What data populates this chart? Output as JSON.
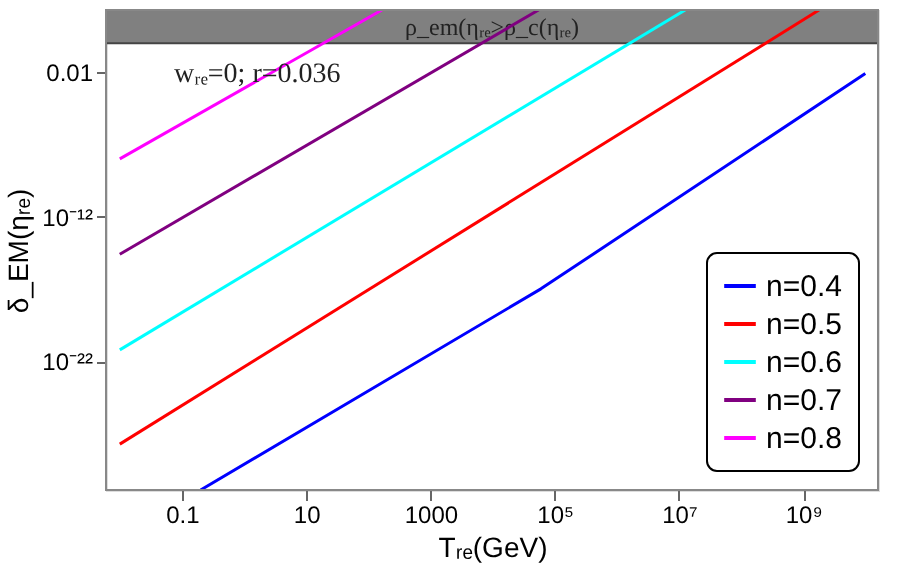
{
  "chart_data": {
    "type": "line",
    "xlabel": "Tᵣₑ(GeV)",
    "ylabel": "δ_EM(ηᵣₑ)",
    "log": "xy",
    "grid": false,
    "legend": "bottom right",
    "marker": "none",
    "line_style": "solid",
    "xlim": [
      0.006,
      16000000000.0
    ],
    "ylim": [
      1.2e-31,
      200
    ],
    "xticks": [
      0.1,
      10,
      1000,
      {
        "value": 100000,
        "label": "10⁵"
      },
      {
        "value": 10000000,
        "label": "10⁷"
      },
      {
        "value": 1000000000,
        "label": "10⁹"
      }
    ],
    "yticks": [
      {
        "value": 1e-22,
        "label": "10⁻²²"
      },
      {
        "value": 1e-12,
        "label": "10⁻¹²"
      },
      0.01
    ],
    "annotations": [
      "wᵣₑ=0; r=0.036"
    ],
    "bands": [
      {
        "axis": "y",
        "from": 1,
        "to": 200,
        "label": "ρ_em(ηᵣₑ>ρ_c(ηᵣₑ)",
        "color": "#808080"
      }
    ],
    "series": [
      {
        "name": "n=0.4",
        "color": "#0000ff",
        "x": [
          0.2,
          60000,
          10000000000.0
        ],
        "values": [
          1.2e-31,
          1e-17,
          0.008
        ]
      },
      {
        "name": "n=0.5",
        "color": "#ff0000",
        "x": [
          0.01,
          1800000000.0
        ],
        "values": [
          1.8e-28,
          200
        ]
      },
      {
        "name": "n=0.6",
        "color": "#00ffff",
        "x": [
          0.01,
          12600000
        ],
        "values": [
          6e-22,
          200
        ]
      },
      {
        "name": "n=0.7",
        "color": "#800080",
        "x": [
          0.01,
          55000
        ],
        "values": [
          2.5e-15,
          200
        ]
      },
      {
        "name": "n=0.8",
        "color": "#ff00ff",
        "x": [
          0.01,
          166
        ],
        "values": [
          1e-08,
          200
        ]
      }
    ]
  }
}
